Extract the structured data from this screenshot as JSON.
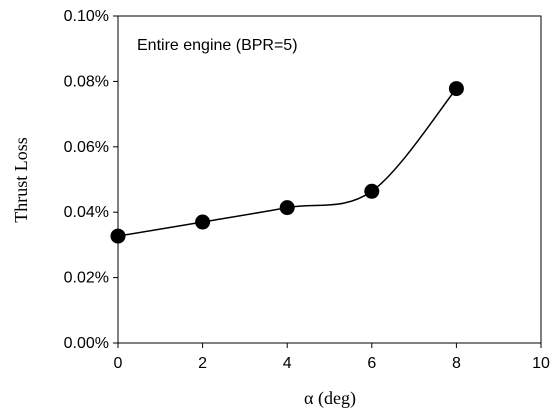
{
  "chart_data": {
    "type": "line",
    "annotation": "Entire engine (BPR=5)",
    "xlabel": "α (deg)",
    "ylabel": "Thrust Loss",
    "xlim": [
      0,
      10
    ],
    "ylim": [
      0,
      0.1
    ],
    "x_ticks": [
      "0",
      "2",
      "4",
      "6",
      "8",
      "10"
    ],
    "y_ticks": [
      "0.00%",
      "0.02%",
      "0.04%",
      "0.06%",
      "0.08%",
      "0.10%"
    ],
    "grid": false,
    "series": [
      {
        "x": [
          0,
          2,
          4,
          6,
          8
        ],
        "values": [
          0.0327,
          0.037,
          0.0414,
          0.0464,
          0.0778
        ],
        "color": "#000000",
        "marker": "filled-circle",
        "smooth": true
      }
    ]
  }
}
